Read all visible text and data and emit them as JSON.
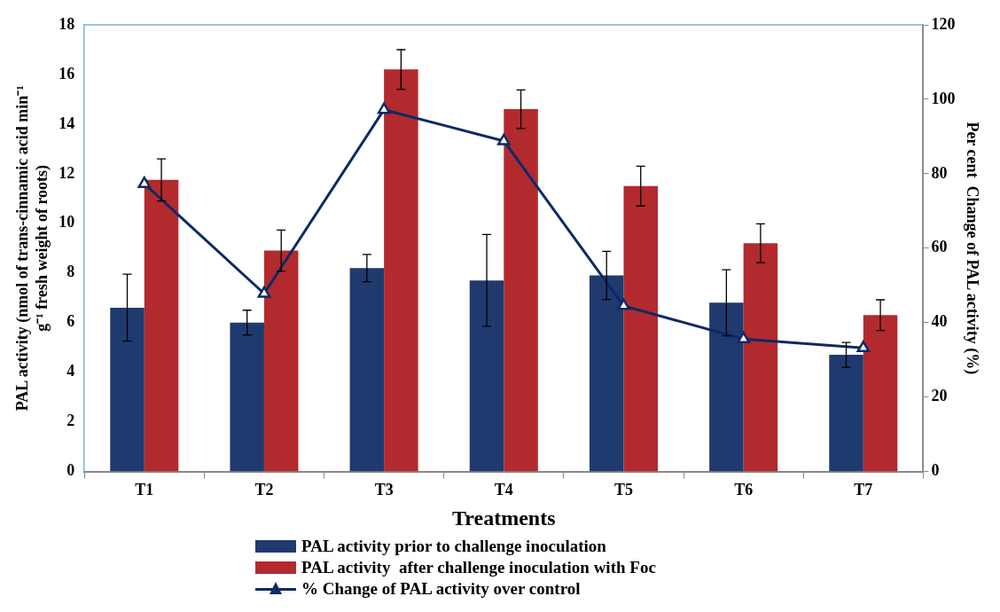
{
  "chart_data": {
    "type": "bar",
    "xlabel": "Treatments",
    "ylabel": "PAL activity (nmol of trans-cinnamic acid min⁻¹ g⁻¹ fresh weight of roots)",
    "y2label": "Per cent  Change of PAL activity (%)",
    "categories": [
      "T1",
      "T2",
      "T3",
      "T4",
      "T5",
      "T6",
      "T7"
    ],
    "series": [
      {
        "name": "PAL activity prior to challenge inoculation",
        "color": "#1f3a6e",
        "values": [
          6.6,
          6.0,
          8.2,
          7.7,
          7.9,
          6.8,
          4.7
        ],
        "errors": [
          1.35,
          0.5,
          0.55,
          1.85,
          0.97,
          1.33,
          0.5
        ]
      },
      {
        "name": "PAL activity  after challenge inoculation with Foc",
        "color": "#b22a2e",
        "values": [
          11.75,
          8.9,
          16.2,
          14.6,
          11.5,
          9.2,
          6.3
        ],
        "errors": [
          0.85,
          0.83,
          0.8,
          0.78,
          0.8,
          0.78,
          0.62
        ]
      },
      {
        "name": "% Change of PAL activity over control",
        "type": "line",
        "axis": "y2",
        "color": "#0d2a66",
        "marker": "triangle",
        "values": [
          77.3,
          47.8,
          97.2,
          88.8,
          44.5,
          35.6,
          33.2
        ]
      }
    ],
    "ylim": [
      0,
      18
    ],
    "yticks": [
      0,
      2,
      4,
      6,
      8,
      10,
      12,
      14,
      16,
      18
    ],
    "y2lim": [
      0,
      120
    ],
    "y2ticks": [
      0,
      20,
      40,
      60,
      80,
      100,
      120
    ],
    "legend": "bottom"
  }
}
